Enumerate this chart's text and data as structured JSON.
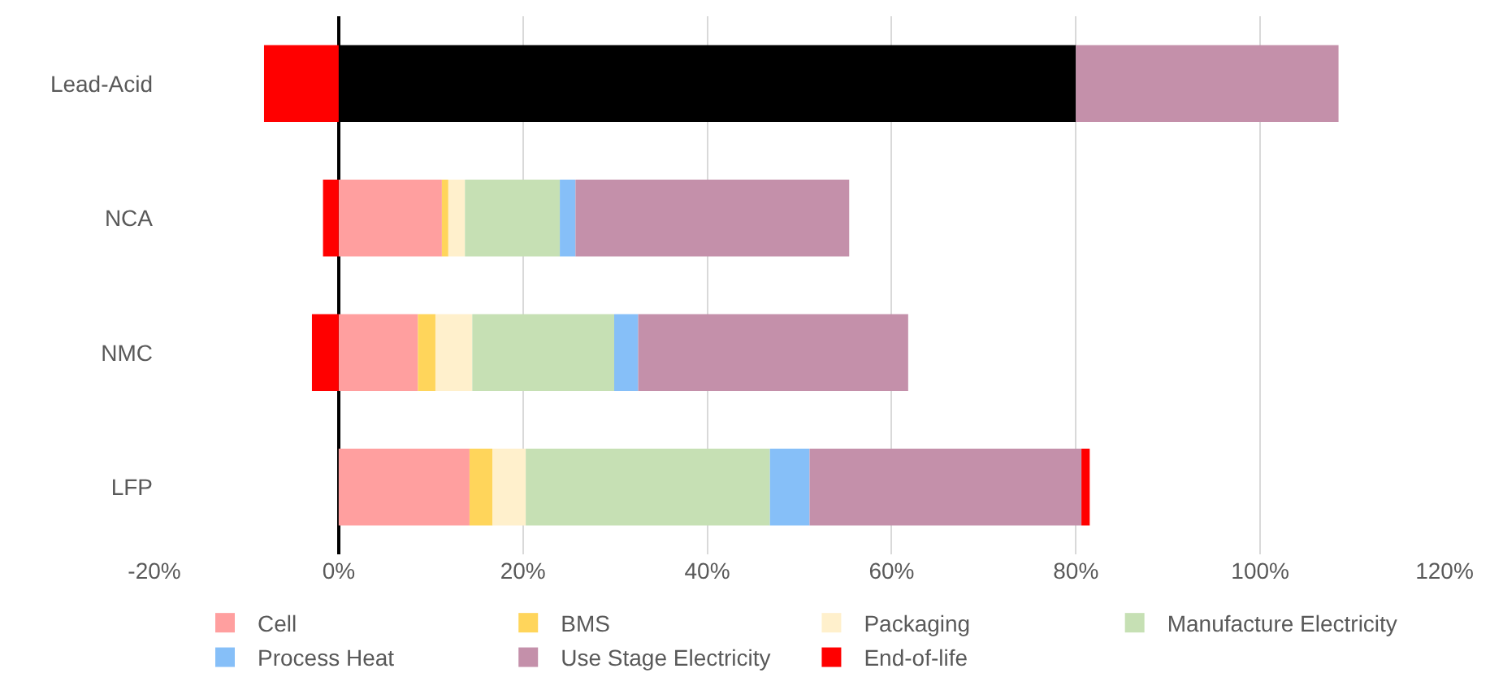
{
  "chart_data": {
    "type": "bar",
    "orientation": "horizontal",
    "stacked": true,
    "categories": [
      "Lead-Acid",
      "NCA",
      "NMC",
      "LFP"
    ],
    "series": [
      {
        "color": "#000000",
        "values": [
          80,
          null,
          null,
          null
        ]
      },
      {
        "name": "Cell",
        "color": "#ff9f9f",
        "values": [
          null,
          11.2,
          8.6,
          14.2
        ]
      },
      {
        "name": "BMS",
        "color": "#ffd55b",
        "values": [
          null,
          0.7,
          1.9,
          2.5
        ]
      },
      {
        "name": "Packaging",
        "color": "#fff0cc",
        "values": [
          null,
          1.8,
          4.0,
          3.6
        ]
      },
      {
        "name": "Manufacture Electricity",
        "color": "#c6e0b4",
        "values": [
          null,
          10.3,
          15.4,
          26.5
        ]
      },
      {
        "name": "Process Heat",
        "color": "#86bff8",
        "values": [
          null,
          1.7,
          2.6,
          4.3
        ]
      },
      {
        "name": "Use Stage Electricity",
        "color": "#c490aa",
        "values": [
          28.5,
          29.7,
          29.3,
          29.5
        ]
      },
      {
        "name": "End-of-life",
        "color": "#ff0000",
        "values": [
          -8.1,
          -1.7,
          -2.9,
          0.9
        ]
      }
    ],
    "xlim": [
      -20,
      120
    ],
    "xticks": [
      {
        "value": -20,
        "label": "-20%"
      },
      {
        "value": 0,
        "label": "0%"
      },
      {
        "value": 20,
        "label": "20%"
      },
      {
        "value": 40,
        "label": "40%"
      },
      {
        "value": 60,
        "label": "60%"
      },
      {
        "value": 80,
        "label": "80%"
      },
      {
        "value": 100,
        "label": "100%"
      },
      {
        "value": 120,
        "label": "120%"
      }
    ],
    "grid": "x",
    "legend": "bottom"
  }
}
